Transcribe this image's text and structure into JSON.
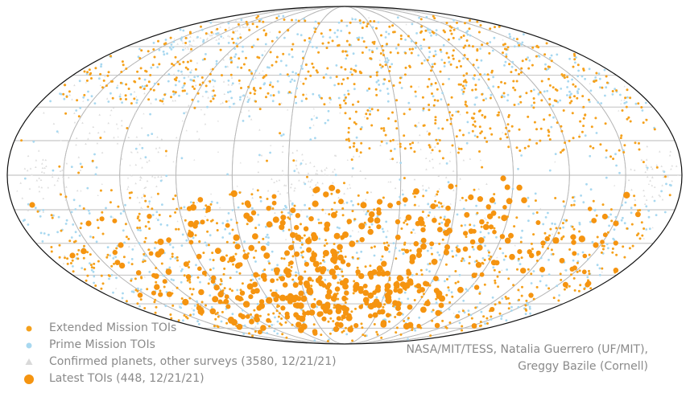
{
  "chart_data": {
    "type": "scatter",
    "projection": "mollweide",
    "grid": true,
    "legend_placement": "bottom-left",
    "series": [
      {
        "name": "Extended Mission TOIs",
        "color": "#f5a11c",
        "marker": "small-circle"
      },
      {
        "name": "Prime Mission TOIs",
        "color": "#a8d8f0",
        "marker": "small-circle"
      },
      {
        "name": "Confirmed planets, other surveys (3580, 12/21/21)",
        "color": "#d9d9d9",
        "marker": "small-triangle"
      },
      {
        "name": "Latest TOIs (448, 12/21/21)",
        "color": "#f59410",
        "marker": "large-circle"
      }
    ],
    "credit_lines": [
      "NASA/MIT/TESS, Natalia Guerrero (UF/MIT),",
      "Greggy Bazile (Cornell)"
    ]
  }
}
